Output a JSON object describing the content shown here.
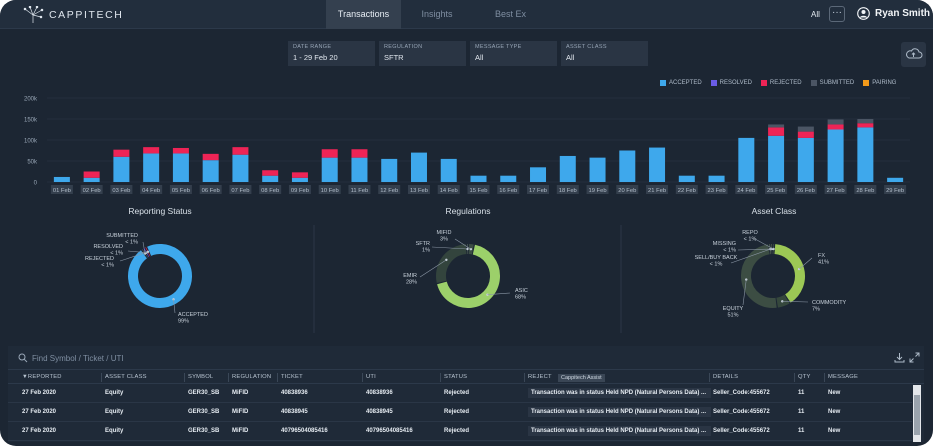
{
  "app": {
    "brand": "CAPPITECH"
  },
  "nav": {
    "tabs": [
      {
        "label": "Transactions"
      },
      {
        "label": "Insights"
      },
      {
        "label": "Best Ex"
      }
    ],
    "filter_all": "All",
    "more": "···",
    "user_name": "Ryan Smith"
  },
  "filters": {
    "date_range": {
      "label": "DATE RANGE",
      "value": "1 - 29 Feb 20"
    },
    "regulation": {
      "label": "REGULATION",
      "value": "SFTR"
    },
    "message_type": {
      "label": "MESSAGE TYPE",
      "value": "All"
    },
    "asset_class": {
      "label": "ASSET CLASS",
      "value": "All"
    }
  },
  "colors": {
    "accepted": "#3ea8ec",
    "resolved": "#6a5ce6",
    "rejected": "#ee2456",
    "submitted": "#4b5564",
    "pairing": "#f29a1a",
    "regulation_green": "#9cd06a",
    "asset_green": "#9cc855"
  },
  "chart_data": [
    {
      "type": "bar",
      "stacked": true,
      "categories": [
        "01 Feb",
        "02 Feb",
        "03 Feb",
        "04 Feb",
        "05 Feb",
        "06 Feb",
        "07 Feb",
        "08 Feb",
        "09 Feb",
        "10 Feb",
        "11 Feb",
        "12 Feb",
        "13 Feb",
        "14 Feb",
        "15 Feb",
        "16 Feb",
        "17 Feb",
        "18 Feb",
        "19 Feb",
        "20 Feb",
        "21 Feb",
        "22 Feb",
        "23 Feb",
        "24 Feb",
        "25 Feb",
        "26 Feb",
        "27 Feb",
        "28 Feb",
        "29 Feb"
      ],
      "y_ticks": [
        "0",
        "50k",
        "100k",
        "150k",
        "200k"
      ],
      "ylim": [
        0,
        200000
      ],
      "legend": [
        "ACCEPTED",
        "RESOLVED",
        "REJECTED",
        "SUBMITTED",
        "PAIRING"
      ],
      "legend_position": "top-right",
      "series": [
        {
          "name": "ACCEPTED",
          "values": [
            12000,
            10000,
            60000,
            68000,
            68000,
            52000,
            65000,
            15000,
            10000,
            58000,
            58000,
            55000,
            70000,
            55000,
            15000,
            15000,
            35000,
            62000,
            58000,
            75000,
            82000,
            15000,
            15000,
            105000,
            110000,
            105000,
            125000,
            130000,
            10000
          ]
        },
        {
          "name": "RESOLVED",
          "values": [
            0,
            0,
            0,
            0,
            0,
            0,
            0,
            0,
            0,
            0,
            0,
            0,
            0,
            0,
            0,
            0,
            0,
            0,
            0,
            0,
            0,
            0,
            0,
            0,
            0,
            0,
            0,
            0,
            0
          ]
        },
        {
          "name": "REJECTED",
          "values": [
            0,
            15000,
            17000,
            15000,
            13000,
            15000,
            18000,
            13000,
            13000,
            20000,
            20000,
            0,
            0,
            0,
            0,
            0,
            0,
            0,
            0,
            0,
            0,
            0,
            0,
            0,
            20000,
            15000,
            12000,
            10000,
            0
          ]
        },
        {
          "name": "SUBMITTED",
          "values": [
            0,
            0,
            0,
            0,
            0,
            0,
            0,
            0,
            0,
            0,
            0,
            0,
            0,
            0,
            0,
            0,
            0,
            0,
            0,
            0,
            0,
            0,
            0,
            0,
            7000,
            12000,
            12000,
            10000,
            0
          ]
        },
        {
          "name": "PAIRING",
          "values": [
            0,
            0,
            0,
            0,
            0,
            0,
            0,
            0,
            0,
            0,
            0,
            0,
            0,
            0,
            0,
            0,
            0,
            0,
            0,
            0,
            0,
            0,
            0,
            0,
            0,
            0,
            0,
            0,
            0
          ]
        }
      ]
    },
    {
      "type": "pie",
      "title": "Reporting Status",
      "slices": [
        {
          "name": "ACCEPTED",
          "value": 99,
          "label": "99%"
        },
        {
          "name": "SUBMITTED",
          "value": 1,
          "label": "< 1%"
        },
        {
          "name": "RESOLVED",
          "value": 1,
          "label": "< 1%"
        },
        {
          "name": "REJECTED",
          "value": 1,
          "label": "< 1%"
        }
      ]
    },
    {
      "type": "pie",
      "title": "Regulations",
      "slices": [
        {
          "name": "ASIC",
          "value": 68,
          "label": "68%"
        },
        {
          "name": "EMIR",
          "value": 28,
          "label": "28%"
        },
        {
          "name": "SFTR",
          "value": 1,
          "label": "1%"
        },
        {
          "name": "MIFID",
          "value": 3,
          "label": "3%"
        }
      ]
    },
    {
      "type": "pie",
      "title": "Asset Class",
      "slices": [
        {
          "name": "FX",
          "value": 41,
          "label": "41%"
        },
        {
          "name": "COMMODITY",
          "value": 7,
          "label": "7%"
        },
        {
          "name": "EQUITY",
          "value": 51,
          "label": "51%"
        },
        {
          "name": "SELL/BUY BACK",
          "value": 1,
          "label": "< 1%"
        },
        {
          "name": "MISSING",
          "value": 1,
          "label": "< 1%"
        },
        {
          "name": "REPO",
          "value": 1,
          "label": "< 1%"
        }
      ]
    }
  ],
  "grid": {
    "search_placeholder": "Find Symbol / Ticket / UTI",
    "assist_label": "Cappitech Assist",
    "columns": [
      "▼REPORTED",
      "ASSET CLASS",
      "SYMBOL",
      "REGULATION",
      "TICKET",
      "UTI",
      "STATUS",
      "REJECT",
      "DETAILS",
      "QTY",
      "MESSAGE"
    ],
    "rows": [
      [
        "27 Feb 2020",
        "Equity",
        "GER30_SB",
        "MiFID",
        "40838936",
        "40838936",
        "Rejected",
        "Transaction was in status Held NPD (Natural Persons Data) ...",
        "Seller_Code:455672",
        "11",
        "New"
      ],
      [
        "27 Feb 2020",
        "Equity",
        "GER30_SB",
        "MiFID",
        "40838945",
        "40838945",
        "Rejected",
        "Transaction was in status Held NPD (Natural Persons Data) ...",
        "Seller_Code:455672",
        "11",
        "New"
      ],
      [
        "27 Feb 2020",
        "Equity",
        "GER30_SB",
        "MiFID",
        "40796504085416",
        "40796504085416",
        "Rejected",
        "Transaction was in status Held NPD (Natural Persons Data) ...",
        "Seller_Code:455672",
        "11",
        "New"
      ]
    ]
  }
}
